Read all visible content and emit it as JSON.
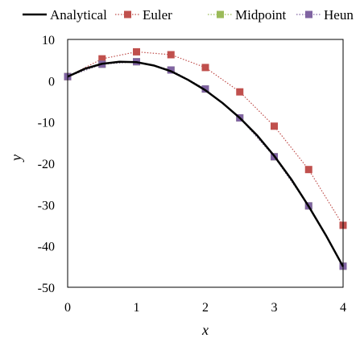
{
  "chart_data": {
    "type": "line",
    "title": "",
    "xlabel": "x",
    "ylabel": "y",
    "xlim": [
      0,
      4
    ],
    "ylim": [
      -50,
      10
    ],
    "xticks": [
      "0",
      "1",
      "2",
      "3",
      "4"
    ],
    "yticks": [
      "10",
      "0",
      "-10",
      "-20",
      "-30",
      "-40",
      "-50"
    ],
    "grid": false,
    "legend_position": "top",
    "series": [
      {
        "name": "Analytical",
        "style": "solid-line",
        "color": "#000000",
        "x": [
          0,
          0.25,
          0.5,
          0.75,
          1,
          1.25,
          1.5,
          1.75,
          2,
          2.25,
          2.5,
          2.75,
          3,
          3.25,
          3.5,
          3.75,
          4
        ],
        "y": [
          1,
          2.9,
          4.1,
          4.6,
          4.5,
          3.7,
          2.3,
          0.2,
          -2.3,
          -5.4,
          -9.0,
          -13.2,
          -18.2,
          -23.9,
          -30.4,
          -37.4,
          -45.0
        ]
      },
      {
        "name": "Euler",
        "style": "dotted-line-square-markers",
        "color": "#c0504d",
        "x": [
          0,
          0.5,
          1,
          1.5,
          2,
          2.5,
          3,
          3.5,
          4
        ],
        "y": [
          1,
          5.3,
          7.0,
          6.3,
          3.2,
          -2.7,
          -11.0,
          -21.5,
          -35.0
        ]
      },
      {
        "name": "Midpoint",
        "style": "dotted-line-square-markers",
        "color": "#9bbb59",
        "x": [
          0,
          0.5,
          1,
          1.5,
          2,
          2.5,
          3,
          3.5,
          4
        ],
        "y": [
          1,
          4.0,
          4.6,
          2.6,
          -2.0,
          -9.0,
          -18.4,
          -30.3,
          -44.9
        ]
      },
      {
        "name": "Heun",
        "style": "dotted-line-square-markers",
        "color": "#8064a2",
        "x": [
          0,
          0.5,
          1,
          1.5,
          2,
          2.5,
          3,
          3.5,
          4
        ],
        "y": [
          1,
          4.0,
          4.6,
          2.6,
          -2.0,
          -9.0,
          -18.4,
          -30.3,
          -44.9
        ]
      }
    ]
  }
}
